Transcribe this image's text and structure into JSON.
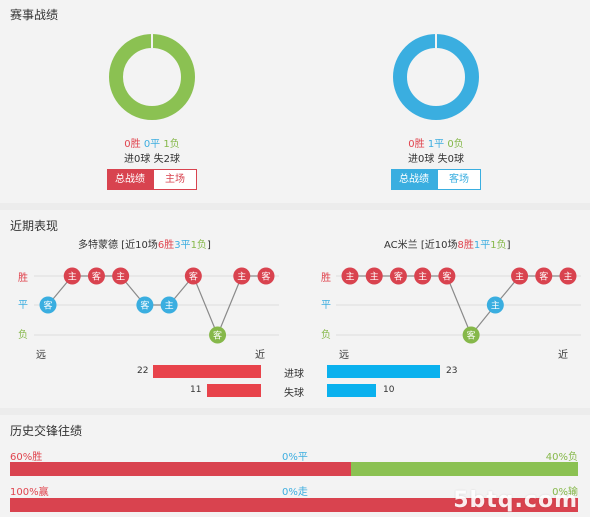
{
  "record": {
    "title": "赛事战绩",
    "left": {
      "win": "0胜",
      "draw": "0平",
      "loss": "1负",
      "goals": "进0球 失2球",
      "tab_active": "总战绩",
      "tab_other": "主场",
      "color": "#8bc152",
      "win_count": 0,
      "draw_count": 0,
      "loss_count": 1
    },
    "right": {
      "win": "0胜",
      "draw": "1平",
      "loss": "0负",
      "goals": "进0球 失0球",
      "tab_active": "总战绩",
      "tab_other": "客场",
      "color": "#3aaee0",
      "win_count": 0,
      "draw_count": 1,
      "loss_count": 0
    }
  },
  "recent": {
    "title": "近期表现",
    "axis": {
      "win": "胜",
      "draw": "平",
      "loss": "负"
    },
    "far": "远",
    "near": "近",
    "left_team": {
      "name": "多特蒙德",
      "summary_prefix": " [近10场",
      "wins": "6胜",
      "draws": "3平",
      "losses": "1负",
      "summary_suffix": "]",
      "results": [
        {
          "venue": "客",
          "result": "draw"
        },
        {
          "venue": "主",
          "result": "win"
        },
        {
          "venue": "客",
          "result": "win"
        },
        {
          "venue": "主",
          "result": "win"
        },
        {
          "venue": "客",
          "result": "draw"
        },
        {
          "venue": "主",
          "result": "draw"
        },
        {
          "venue": "客",
          "result": "win"
        },
        {
          "venue": "客",
          "result": "loss"
        },
        {
          "venue": "主",
          "result": "win"
        },
        {
          "venue": "客",
          "result": "win"
        }
      ]
    },
    "right_team": {
      "name": "AC米兰",
      "summary_prefix": " [近10场",
      "wins": "8胜",
      "draws": "1平",
      "losses": "1负",
      "summary_suffix": "]",
      "results": [
        {
          "venue": "主",
          "result": "win"
        },
        {
          "venue": "主",
          "result": "win"
        },
        {
          "venue": "客",
          "result": "win"
        },
        {
          "venue": "主",
          "result": "win"
        },
        {
          "venue": "客",
          "result": "win"
        },
        {
          "venue": "客",
          "result": "loss"
        },
        {
          "venue": "主",
          "result": "draw"
        },
        {
          "venue": "主",
          "result": "win"
        },
        {
          "venue": "客",
          "result": "win"
        },
        {
          "venue": "主",
          "result": "win"
        }
      ]
    },
    "goals": {
      "for_label": "进球",
      "against_label": "失球",
      "left_for": 22,
      "left_against": 11,
      "right_for": 23,
      "right_against": 10,
      "max": 23,
      "left_color": "#e8434b",
      "right_color": "#0ab1ee"
    }
  },
  "history": {
    "title": "历史交锋往绩",
    "row1": {
      "left": "60%胜",
      "mid": "0%平",
      "right": "40%负",
      "win_pct": 60,
      "draw_pct": 0,
      "loss_pct": 40
    },
    "row2": {
      "left": "100%赢",
      "mid": "0%走",
      "right": "0%输",
      "win_pct": 100,
      "draw_pct": 0,
      "loss_pct": 0
    },
    "colors": {
      "win": "#d9434f",
      "draw": "#3aaee0",
      "loss": "#8bc152"
    }
  },
  "watermark": "5btq.com"
}
